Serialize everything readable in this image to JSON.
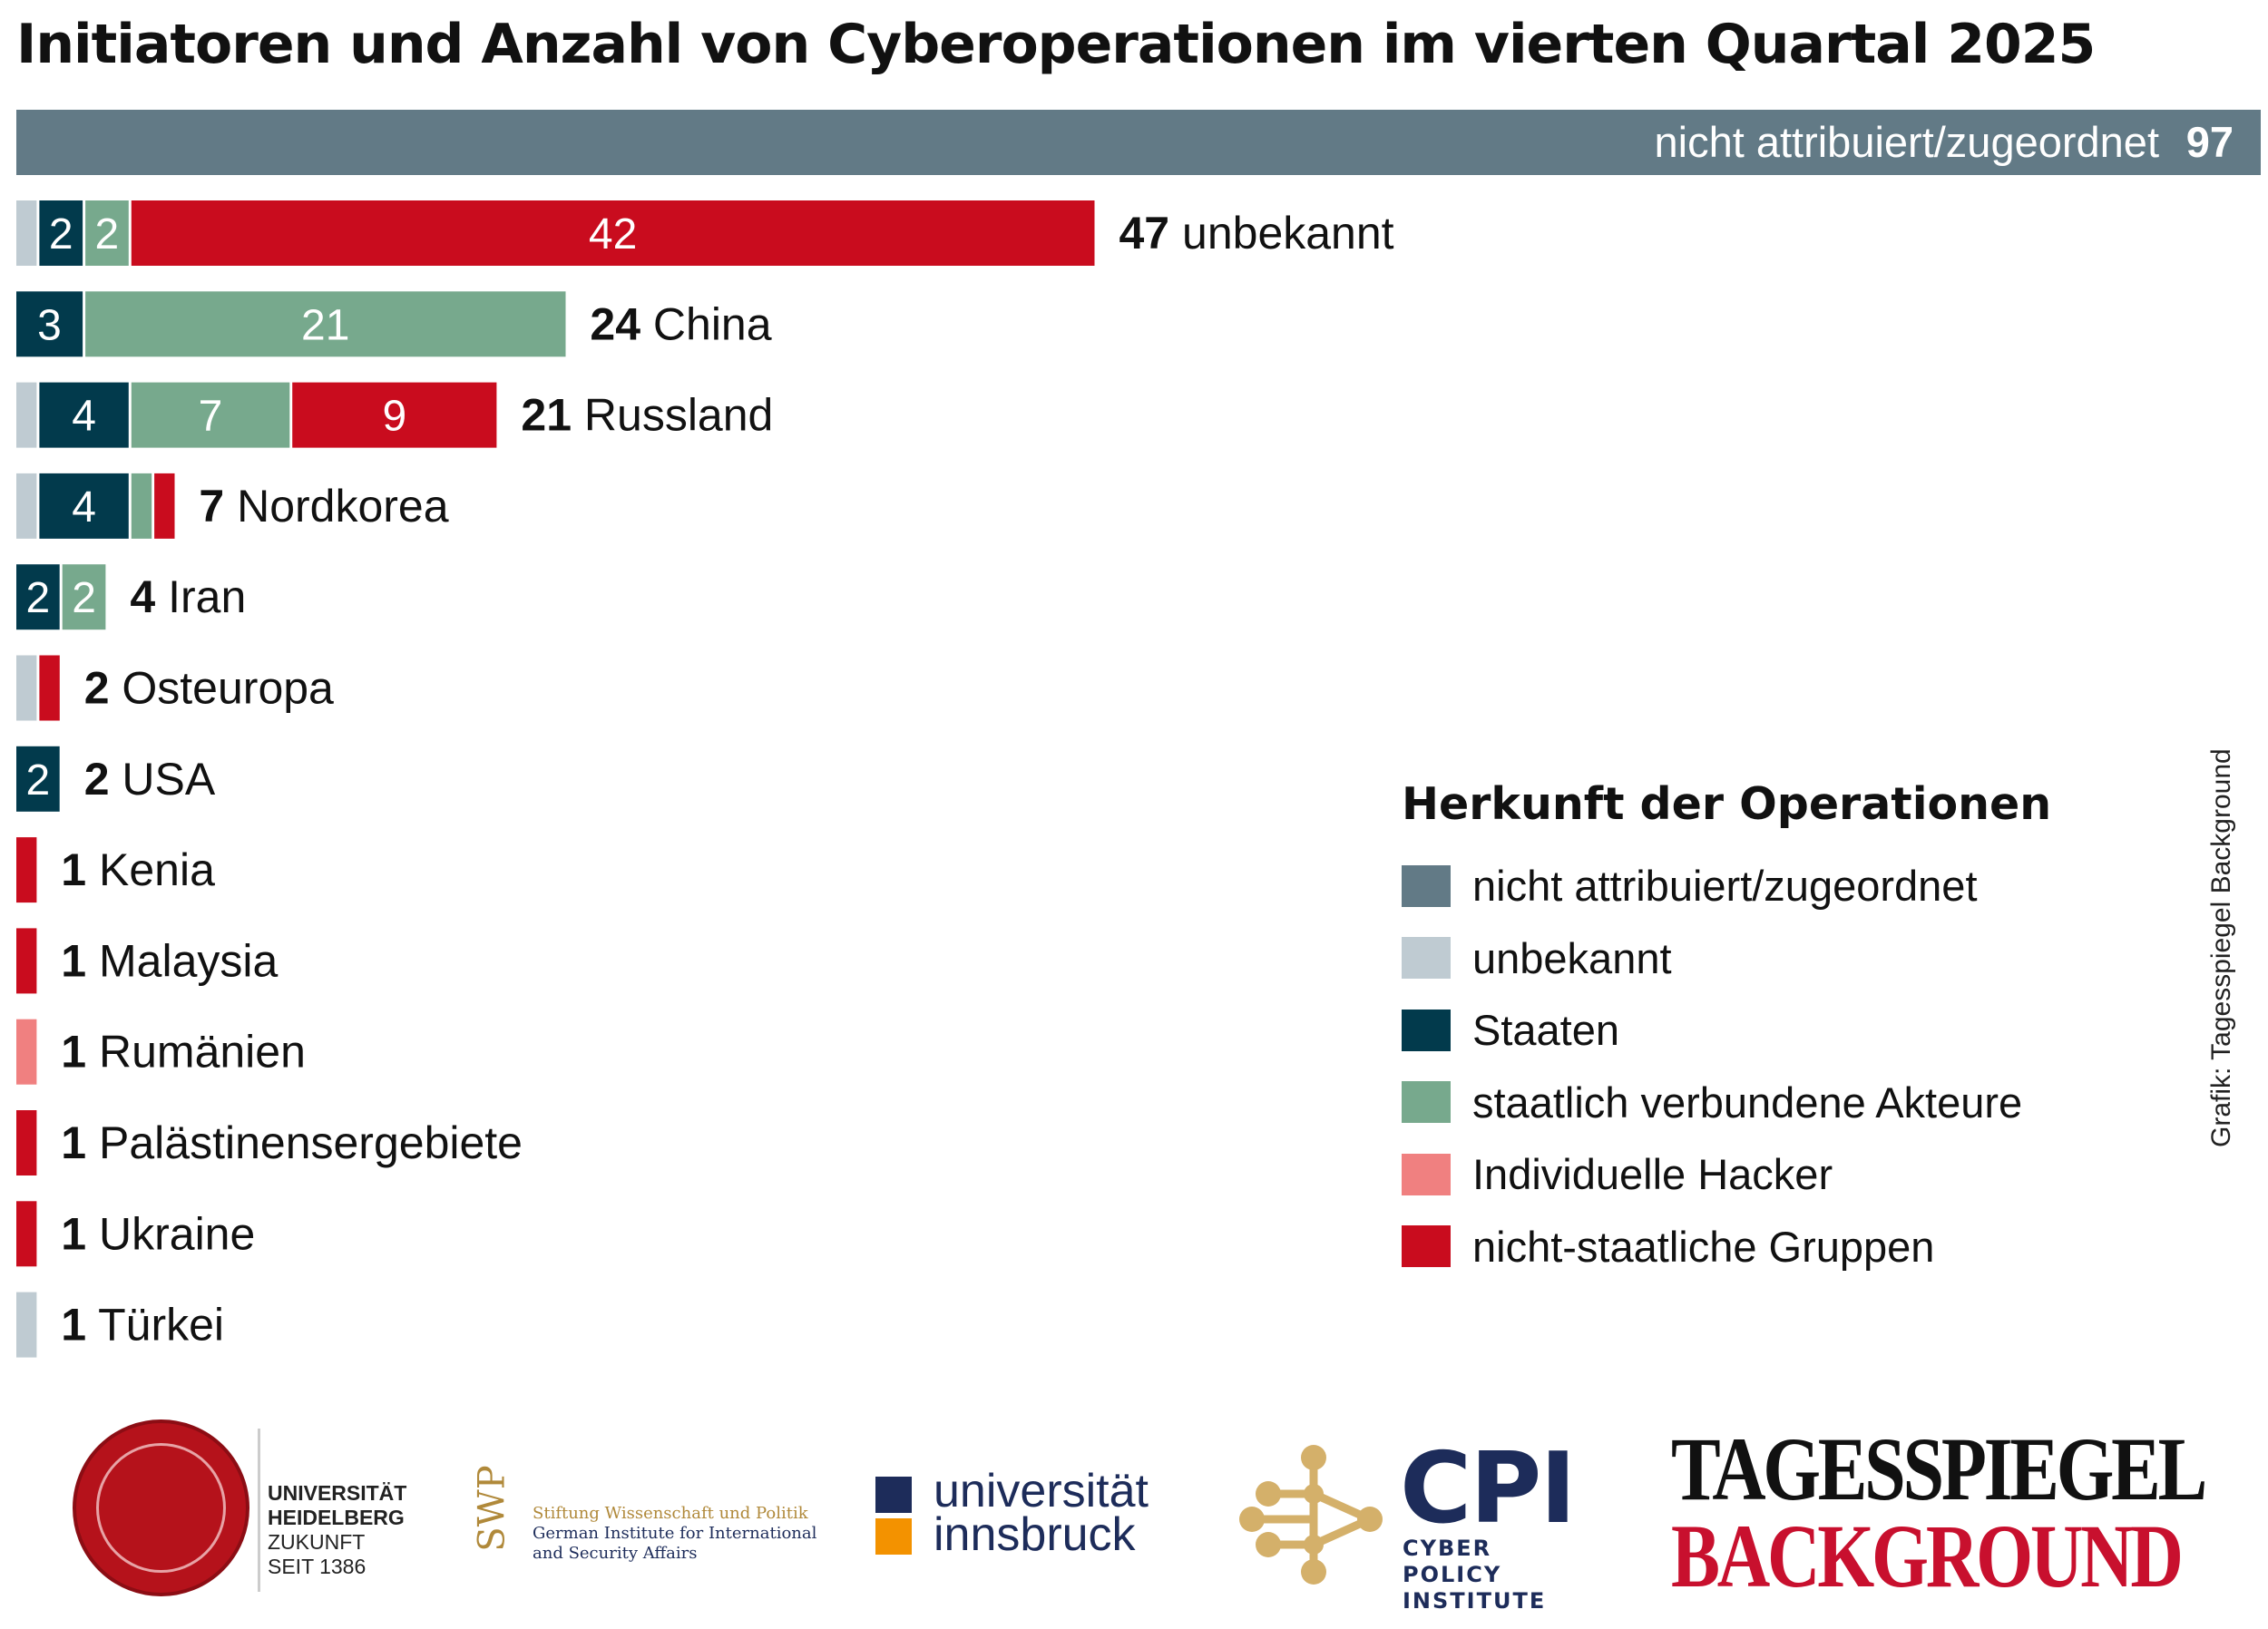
{
  "chart_data": {
    "type": "bar",
    "orientation": "horizontal",
    "stacked": true,
    "title": "Initiatoren und Anzahl von Cyberoperationen im vierten Quartal 2025",
    "top_bar": {
      "label": "nicht attribuiert/zugeordnet",
      "value": 97,
      "color": "#627a86"
    },
    "segment_types": [
      {
        "key": "unbekannt",
        "color": "#bfcbd2"
      },
      {
        "key": "staaten",
        "color": "#023a4c"
      },
      {
        "key": "staatlich",
        "color": "#77a98d"
      },
      {
        "key": "individuell",
        "color": "#f08080"
      },
      {
        "key": "nichtstaatlich",
        "color": "#c90c1e"
      }
    ],
    "rows": [
      {
        "label": "unbekannt",
        "total": 47,
        "segments": [
          {
            "type": "unbekannt",
            "value": 1
          },
          {
            "type": "staaten",
            "value": 2
          },
          {
            "type": "staatlich",
            "value": 2
          },
          {
            "type": "nichtstaatlich",
            "value": 42
          }
        ]
      },
      {
        "label": "China",
        "total": 24,
        "segments": [
          {
            "type": "staaten",
            "value": 3
          },
          {
            "type": "staatlich",
            "value": 21
          }
        ]
      },
      {
        "label": "Russland",
        "total": 21,
        "segments": [
          {
            "type": "unbekannt",
            "value": 1
          },
          {
            "type": "staaten",
            "value": 4
          },
          {
            "type": "staatlich",
            "value": 7
          },
          {
            "type": "nichtstaatlich",
            "value": 9
          }
        ]
      },
      {
        "label": "Nordkorea",
        "total": 7,
        "segments": [
          {
            "type": "unbekannt",
            "value": 1
          },
          {
            "type": "staaten",
            "value": 4
          },
          {
            "type": "staatlich",
            "value": 1
          },
          {
            "type": "nichtstaatlich",
            "value": 1
          }
        ]
      },
      {
        "label": "Iran",
        "total": 4,
        "segments": [
          {
            "type": "staaten",
            "value": 2
          },
          {
            "type": "staatlich",
            "value": 2
          }
        ]
      },
      {
        "label": "Osteuropa",
        "total": 2,
        "segments": [
          {
            "type": "unbekannt",
            "value": 1
          },
          {
            "type": "nichtstaatlich",
            "value": 1
          }
        ]
      },
      {
        "label": "USA",
        "total": 2,
        "segments": [
          {
            "type": "staaten",
            "value": 2
          }
        ]
      },
      {
        "label": "Kenia",
        "total": 1,
        "segments": [
          {
            "type": "nichtstaatlich",
            "value": 1
          }
        ]
      },
      {
        "label": "Malaysia",
        "total": 1,
        "segments": [
          {
            "type": "nichtstaatlich",
            "value": 1
          }
        ]
      },
      {
        "label": "Rumänien",
        "total": 1,
        "segments": [
          {
            "type": "individuell",
            "value": 1
          }
        ]
      },
      {
        "label": "Palästinensergebiete",
        "total": 1,
        "segments": [
          {
            "type": "nichtstaatlich",
            "value": 1
          }
        ]
      },
      {
        "label": "Ukraine",
        "total": 1,
        "segments": [
          {
            "type": "nichtstaatlich",
            "value": 1
          }
        ]
      },
      {
        "label": "Türkei",
        "total": 1,
        "segments": [
          {
            "type": "unbekannt",
            "value": 1
          }
        ]
      }
    ],
    "legend": {
      "title": "Herkunft der Operationen",
      "placement": "right",
      "items": [
        {
          "label": "nicht attribuiert/zugeordnet",
          "color": "#627a86"
        },
        {
          "label": "unbekannt",
          "color": "#bfcbd2"
        },
        {
          "label": "Staaten",
          "color": "#023a4c"
        },
        {
          "label": "staatlich verbundene Akteure",
          "color": "#77a98d"
        },
        {
          "label": "Individuelle Hacker",
          "color": "#f08080"
        },
        {
          "label": "nicht-staatliche Gruppen",
          "color": "#c90c1e"
        }
      ]
    }
  },
  "credit": "Grafik: Tagesspiegel Background",
  "logos": {
    "heidelberg": {
      "line1": "UNIVERSITÄT",
      "line2": "HEIDELBERG",
      "line3": "ZUKUNFT",
      "line4": "SEIT 1386"
    },
    "swp": {
      "mark": "SWP",
      "line1": "Stiftung Wissenschaft und Politik",
      "line2": "German Institute for International",
      "line3": "and Security Affairs"
    },
    "innsbruck": {
      "line1": "universität",
      "line2": "innsbruck"
    },
    "cpi": {
      "big": "CPI",
      "line1": "CYBER POLICY",
      "line2": "INSTITUTE"
    },
    "tagesspiegel": {
      "line1": "TAGESSPIEGEL",
      "line2": "BACKGROUND"
    }
  }
}
